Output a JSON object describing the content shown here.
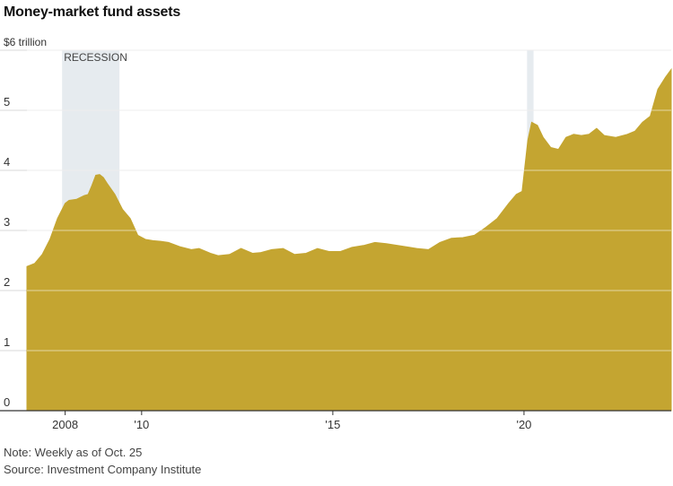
{
  "title": "Money-market fund assets",
  "note": "Note: Weekly as of Oct. 25",
  "source": "Source: Investment Company Institute",
  "colors": {
    "area": "#C4A531",
    "recession": "#E6EBEF",
    "grid": "#D9D9D9",
    "baseline": "#333333",
    "text": "#444444"
  },
  "chart_data": {
    "type": "area",
    "title": "Money-market fund assets",
    "xlabel": "",
    "ylabel": "$ trillion",
    "xlim": [
      2007.0,
      2023.85
    ],
    "ylim": [
      0,
      6
    ],
    "y_ticks": [
      {
        "value": 6,
        "label": "$6 trillion"
      },
      {
        "value": 5,
        "label": "5"
      },
      {
        "value": 4,
        "label": "4"
      },
      {
        "value": 3,
        "label": "3"
      },
      {
        "value": 2,
        "label": "2"
      },
      {
        "value": 1,
        "label": "1"
      },
      {
        "value": 0,
        "label": "0"
      }
    ],
    "x_ticks": [
      {
        "value": 2008,
        "label": "2008"
      },
      {
        "value": 2010,
        "label": "'10"
      },
      {
        "value": 2015,
        "label": "'15"
      },
      {
        "value": 2020,
        "label": "'20"
      }
    ],
    "recessions": [
      {
        "start": 2007.92,
        "end": 2009.42,
        "label": "RECESSION"
      },
      {
        "start": 2020.08,
        "end": 2020.25,
        "label": ""
      }
    ],
    "grid": true,
    "series": [
      {
        "name": "Money-market fund assets ($ trillion)",
        "x": [
          2007.0,
          2007.2,
          2007.4,
          2007.6,
          2007.8,
          2008.0,
          2008.1,
          2008.3,
          2008.5,
          2008.6,
          2008.7,
          2008.8,
          2008.9,
          2009.0,
          2009.1,
          2009.3,
          2009.5,
          2009.7,
          2009.9,
          2010.1,
          2010.3,
          2010.5,
          2010.7,
          2011.0,
          2011.3,
          2011.5,
          2011.8,
          2012.0,
          2012.3,
          2012.6,
          2012.9,
          2013.1,
          2013.4,
          2013.7,
          2014.0,
          2014.3,
          2014.6,
          2014.9,
          2015.2,
          2015.5,
          2015.8,
          2016.1,
          2016.4,
          2016.7,
          2017.0,
          2017.2,
          2017.5,
          2017.8,
          2018.1,
          2018.4,
          2018.7,
          2019.0,
          2019.3,
          2019.6,
          2019.8,
          2019.95,
          2020.1,
          2020.2,
          2020.35,
          2020.5,
          2020.7,
          2020.9,
          2021.1,
          2021.3,
          2021.5,
          2021.7,
          2021.9,
          2022.1,
          2022.4,
          2022.7,
          2022.9,
          2023.1,
          2023.3,
          2023.5,
          2023.7,
          2023.85
        ],
        "values": [
          2.4,
          2.45,
          2.6,
          2.85,
          3.2,
          3.45,
          3.5,
          3.52,
          3.58,
          3.6,
          3.75,
          3.92,
          3.93,
          3.88,
          3.78,
          3.6,
          3.35,
          3.2,
          2.92,
          2.85,
          2.83,
          2.82,
          2.8,
          2.73,
          2.68,
          2.7,
          2.62,
          2.58,
          2.6,
          2.7,
          2.62,
          2.63,
          2.68,
          2.7,
          2.6,
          2.62,
          2.7,
          2.65,
          2.65,
          2.72,
          2.75,
          2.8,
          2.78,
          2.75,
          2.72,
          2.7,
          2.68,
          2.8,
          2.87,
          2.88,
          2.92,
          3.05,
          3.2,
          3.45,
          3.6,
          3.65,
          4.5,
          4.8,
          4.75,
          4.55,
          4.38,
          4.35,
          4.55,
          4.6,
          4.58,
          4.6,
          4.7,
          4.58,
          4.55,
          4.6,
          4.65,
          4.8,
          4.9,
          5.35,
          5.55,
          5.68
        ]
      }
    ]
  }
}
